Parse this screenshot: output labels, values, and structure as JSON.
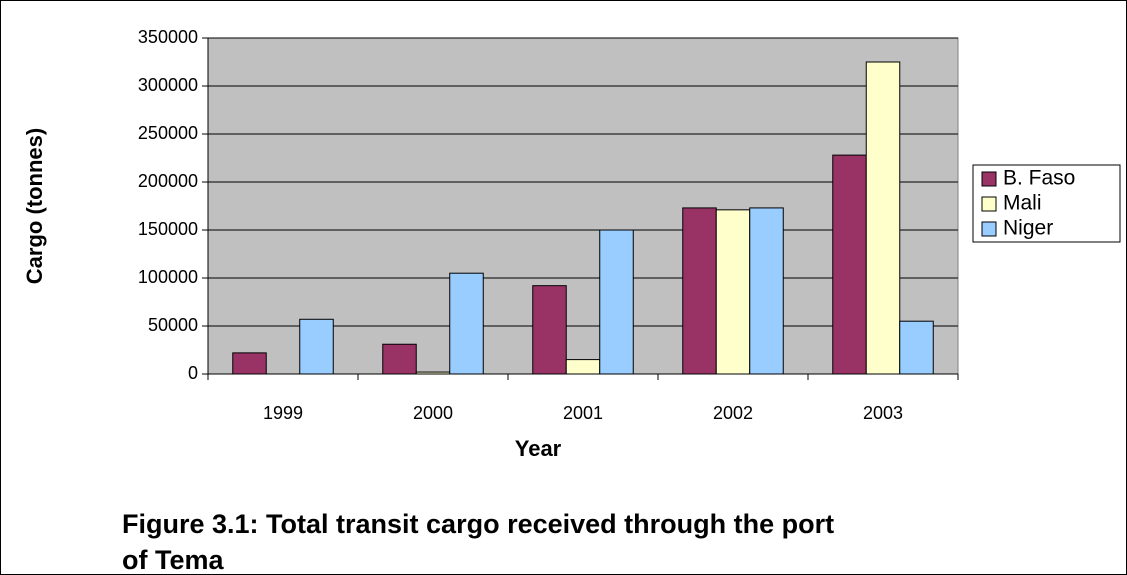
{
  "chart_data": {
    "type": "bar",
    "caption": "Figure 3.1: Total transit cargo received through the port of Tema",
    "xlabel": "Year",
    "ylabel": "Cargo (tonnes)",
    "categories": [
      "1999",
      "2000",
      "2001",
      "2002",
      "2003"
    ],
    "series": [
      {
        "name": "B. Faso",
        "color": "#993366",
        "values": [
          22000,
          31000,
          92000,
          173000,
          228000
        ]
      },
      {
        "name": "Mali",
        "color": "#ffffcc",
        "values": [
          0,
          2000,
          15000,
          171000,
          325000
        ]
      },
      {
        "name": "Niger",
        "color": "#99ccff",
        "values": [
          57000,
          105000,
          150000,
          173000,
          55000
        ]
      }
    ],
    "ylim": [
      0,
      350000
    ],
    "yticks": [
      0,
      50000,
      100000,
      150000,
      200000,
      250000,
      300000,
      350000
    ],
    "grid": true,
    "legend": "right",
    "plot_background": "#c0c0c0"
  }
}
